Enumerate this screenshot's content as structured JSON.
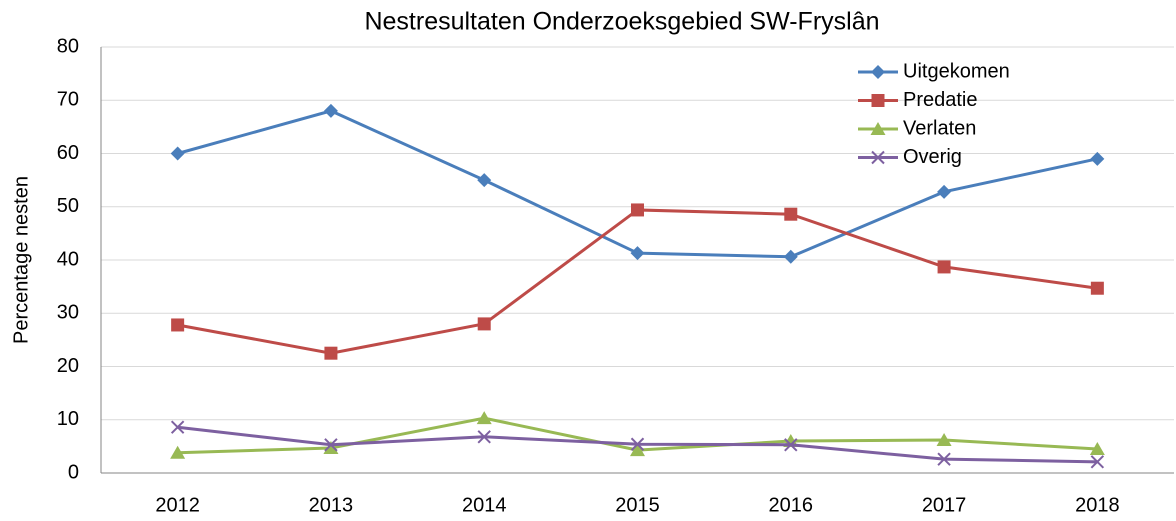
{
  "chart_data": {
    "type": "line",
    "title": "Nestresultaten Onderzoeksgebied SW-Fryslân",
    "y_label": "Percentage nesten",
    "categories": [
      "2012",
      "2013",
      "2014",
      "2015",
      "2016",
      "2017",
      "2018"
    ],
    "series": [
      {
        "name": "Uitgekomen",
        "color": "#4a7ebb",
        "marker": "diamond",
        "values": [
          60,
          68,
          55,
          41.3,
          40.6,
          52.8,
          59
        ]
      },
      {
        "name": "Predatie",
        "color": "#be4b48",
        "marker": "square",
        "values": [
          27.8,
          22.5,
          28,
          49.4,
          48.6,
          38.7,
          34.7
        ]
      },
      {
        "name": "Verlaten",
        "color": "#98b954",
        "marker": "triangle",
        "values": [
          3.8,
          4.7,
          10.3,
          4.3,
          6,
          6.2,
          4.5
        ]
      },
      {
        "name": "Overig",
        "color": "#7d60a0",
        "marker": "x",
        "values": [
          8.6,
          5.3,
          6.8,
          5.4,
          5.3,
          2.6,
          2.1
        ]
      }
    ],
    "ylim": [
      0,
      80
    ],
    "yticks": [
      0,
      10,
      20,
      30,
      40,
      50,
      60,
      70,
      80
    ],
    "grid": true,
    "legend": "top-right"
  }
}
